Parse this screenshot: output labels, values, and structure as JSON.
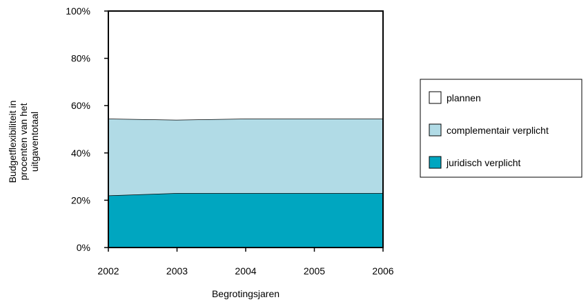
{
  "chart_data": {
    "type": "area",
    "stacked": true,
    "x": [
      2002,
      2003,
      2004,
      2005,
      2006
    ],
    "x_tick_labels": [
      "2002",
      "2003",
      "2004",
      "2005",
      "2006"
    ],
    "series": [
      {
        "name": "juridisch verplicht",
        "values": [
          22,
          23,
          23,
          23,
          23
        ],
        "color": "#00a6c0"
      },
      {
        "name": "complementair verplicht",
        "values": [
          32.5,
          31,
          31.5,
          31.5,
          31.5
        ],
        "color": "#b1dbe6"
      },
      {
        "name": "plannen",
        "values": [
          45.5,
          46,
          45.5,
          45.5,
          45.5
        ],
        "color": "#ffffff"
      }
    ],
    "xlabel": "Begrotingsjaren",
    "ylabel": [
      "Budgetflexibiliteit in",
      "procenten van het",
      "uitgaventotaal"
    ],
    "ylim": [
      0,
      100
    ],
    "y_ticks": [
      0,
      20,
      40,
      60,
      80,
      100
    ],
    "y_tick_labels": [
      "0%",
      "20%",
      "40%",
      "60%",
      "80%",
      "100%"
    ],
    "grid": false,
    "legend_position": "right",
    "legend_order": [
      "plannen",
      "complementair verplicht",
      "juridisch verplicht"
    ]
  }
}
